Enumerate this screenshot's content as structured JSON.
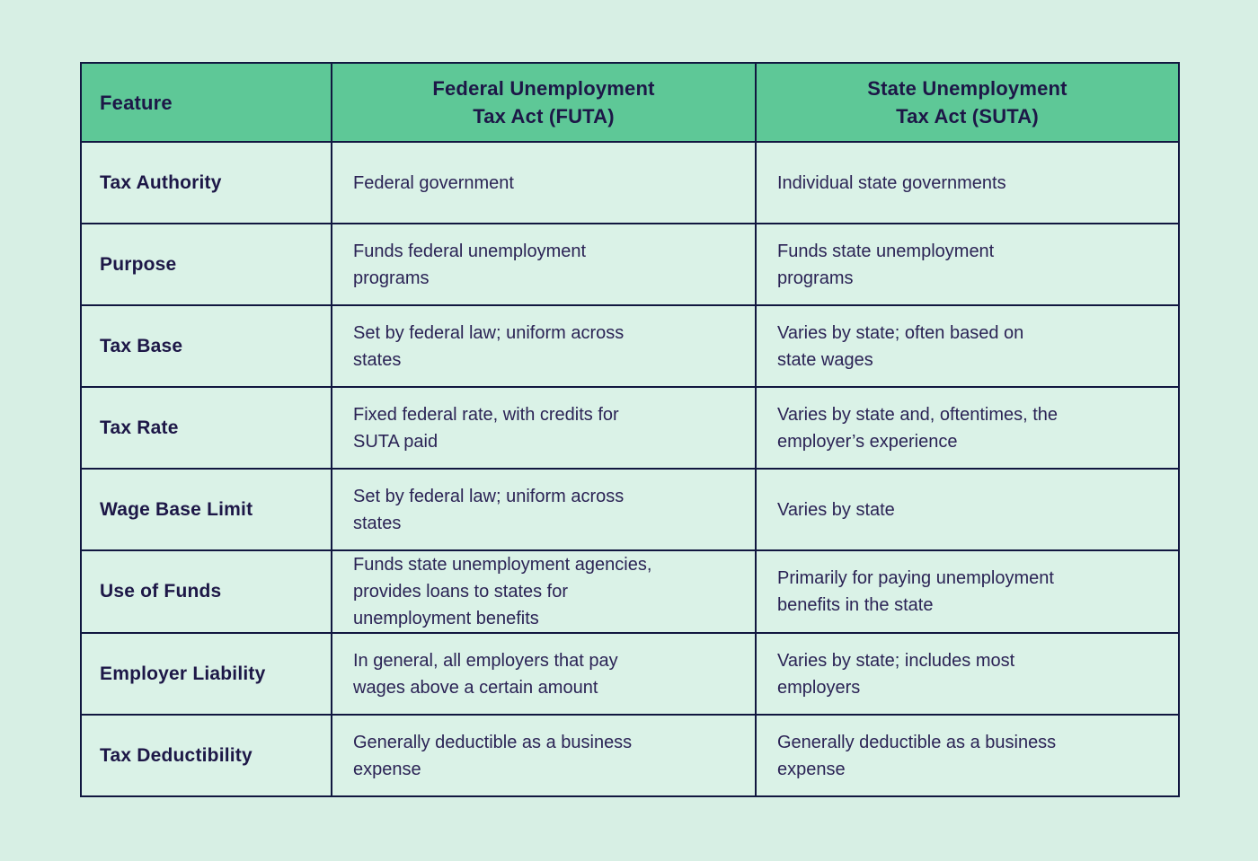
{
  "page": {
    "background_color": "#d7efe4"
  },
  "table": {
    "colors": {
      "header_bg": "#5ec897",
      "cell_bg": "#daf2e7",
      "border": "#111740",
      "header_text": "#1d1747",
      "body_text": "#2b2355"
    },
    "header": {
      "feature": "Feature",
      "futa_line1": "Federal Unemployment",
      "futa_line2": "Tax Act (FUTA)",
      "suta_line1": "State Unemployment",
      "suta_line2": "Tax Act (SUTA)"
    },
    "rows": [
      {
        "feature": "Tax Authority",
        "futa": "Federal government",
        "suta": "Individual state governments"
      },
      {
        "feature": "Purpose",
        "futa": "Funds federal unemployment\nprograms",
        "suta": "Funds state unemployment\nprograms"
      },
      {
        "feature": "Tax Base",
        "futa": "Set by federal law; uniform across\nstates",
        "suta": "Varies by state; often based on\nstate wages"
      },
      {
        "feature": "Tax Rate",
        "futa": "Fixed federal rate, with credits for\nSUTA paid",
        "suta": "Varies by state and, oftentimes, the\nemployer’s experience"
      },
      {
        "feature": "Wage Base Limit",
        "futa": "Set by federal law; uniform across\nstates",
        "suta": "Varies by state"
      },
      {
        "feature": "Use of Funds",
        "futa": "Funds state unemployment agencies,\nprovides loans to states for\nunemployment benefits",
        "suta": "Primarily for paying unemployment\nbenefits in the state"
      },
      {
        "feature": "Employer Liability",
        "futa": "In general, all employers that pay\nwages above a certain amount",
        "suta": "Varies by state; includes most\nemployers"
      },
      {
        "feature": "Tax Deductibility",
        "futa": "Generally deductible as a business\nexpense",
        "suta": "Generally deductible as a business\nexpense"
      }
    ]
  }
}
